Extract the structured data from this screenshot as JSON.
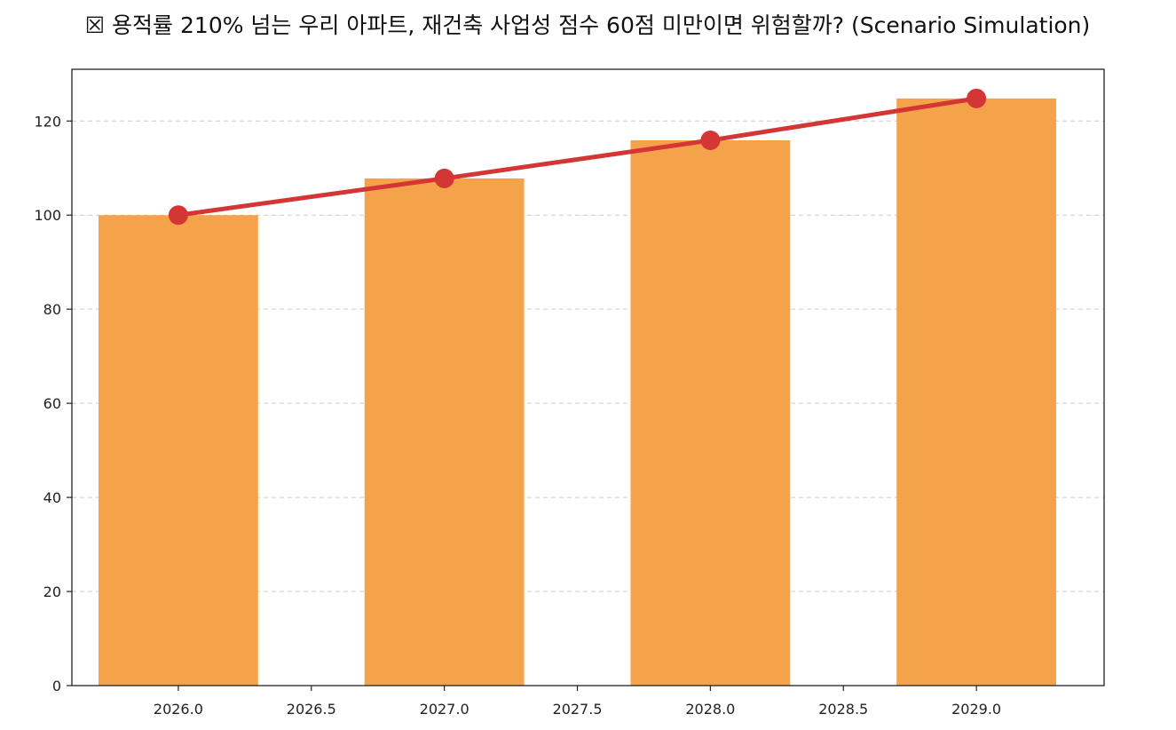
{
  "chart_data": {
    "type": "bar",
    "title": "☒ 용적률 210% 넘는 우리 아파트, 재건축 사업성 점수 60점 미만이면 위험할까? (Scenario Simulation)",
    "xlabel": "",
    "ylabel": "",
    "x": [
      2026,
      2027,
      2028,
      2029
    ],
    "series": [
      {
        "kind": "bar",
        "values": [
          100,
          107.8,
          115.9,
          124.8
        ],
        "color": "#f5a34b"
      },
      {
        "kind": "line",
        "values": [
          100,
          107.8,
          115.9,
          124.8
        ],
        "color": "#d43535"
      }
    ],
    "xlim": [
      2025.6,
      2029.48
    ],
    "ylim": [
      0,
      131
    ],
    "bar_width": 0.6,
    "xticks": [
      2026.0,
      2026.5,
      2027.0,
      2027.5,
      2028.0,
      2028.5,
      2029.0
    ],
    "xtick_labels": [
      "2026.0",
      "2026.5",
      "2027.0",
      "2027.5",
      "2028.0",
      "2028.5",
      "2029.0"
    ],
    "yticks": [
      0,
      20,
      40,
      60,
      80,
      100,
      120
    ],
    "ytick_labels": [
      "0",
      "20",
      "40",
      "60",
      "80",
      "100",
      "120"
    ],
    "grid": "y-dashed",
    "legend": "none"
  }
}
